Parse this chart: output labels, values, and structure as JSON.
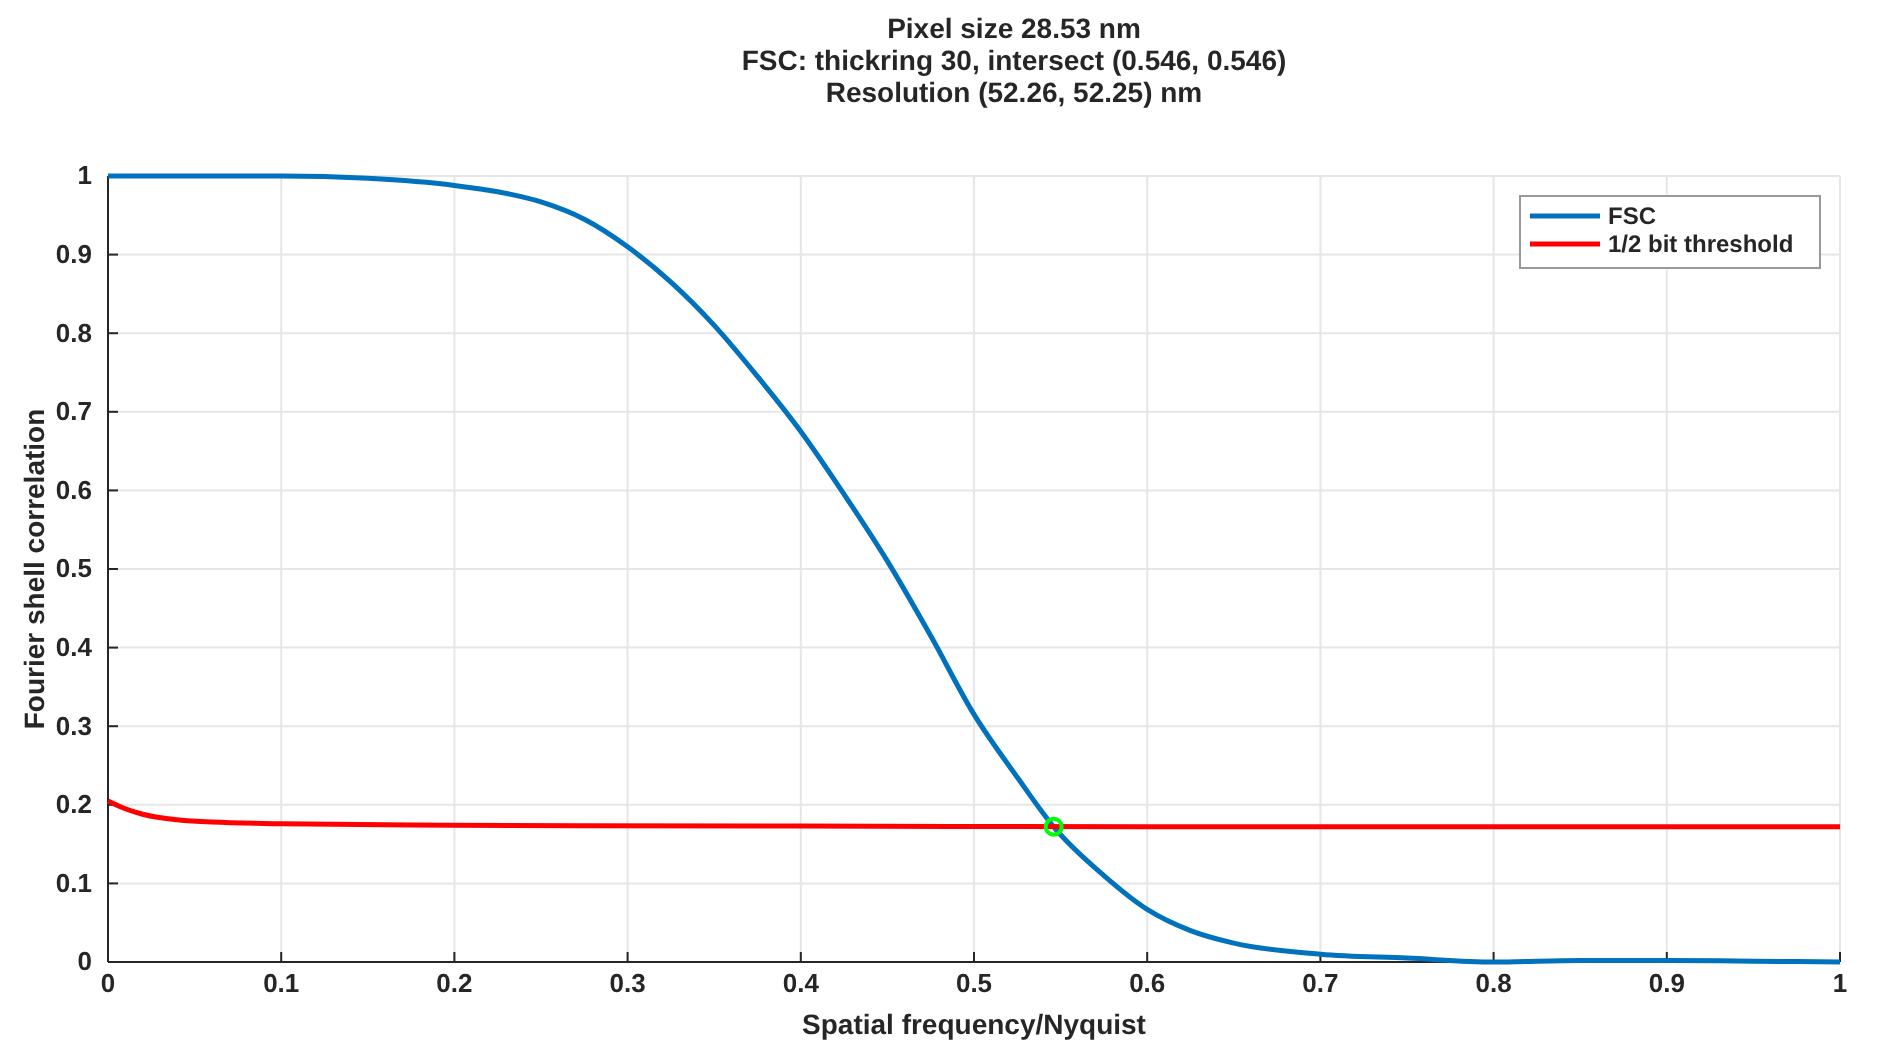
{
  "chart_data": {
    "type": "line",
    "title": "Pixel size 28.53 nm",
    "subtitle": "FSC: thickring 30, intersect (0.546, 0.546)\nResolution (52.26, 52.25) nm",
    "xlabel": "Spatial frequency/Nyquist",
    "ylabel": "Fourier shell correlation",
    "xlim": [
      0,
      1
    ],
    "ylim": [
      0,
      1
    ],
    "xticks": [
      0,
      0.1,
      0.2,
      0.3,
      0.4,
      0.5,
      0.6,
      0.7,
      0.8,
      0.9,
      1
    ],
    "yticks": [
      0,
      0.1,
      0.2,
      0.3,
      0.4,
      0.5,
      0.6,
      0.7,
      0.8,
      0.9,
      1
    ],
    "grid": true,
    "legend": "top right",
    "line_style": "solid",
    "series": [
      {
        "name": "FSC",
        "color": "#0072bd",
        "x": [
          0,
          0.05,
          0.1,
          0.15,
          0.2,
          0.225,
          0.25,
          0.275,
          0.3,
          0.325,
          0.35,
          0.375,
          0.4,
          0.425,
          0.45,
          0.475,
          0.5,
          0.525,
          0.546,
          0.575,
          0.6,
          0.625,
          0.65,
          0.7,
          0.75,
          0.8,
          0.85,
          0.9,
          0.95,
          1
        ],
        "values": [
          1,
          1,
          1,
          0.997,
          0.988,
          0.98,
          0.967,
          0.945,
          0.91,
          0.865,
          0.81,
          0.745,
          0.675,
          0.595,
          0.51,
          0.415,
          0.315,
          0.235,
          0.172,
          0.11,
          0.067,
          0.04,
          0.024,
          0.01,
          0.005,
          0,
          0.002,
          0.002,
          0.001,
          0
        ]
      },
      {
        "name": "1/2 bit threshold",
        "color": "#ff0000",
        "x": [
          0,
          0.01,
          0.02,
          0.04,
          0.06,
          0.1,
          0.2,
          0.4,
          0.6,
          1
        ],
        "values": [
          0.205,
          0.195,
          0.188,
          0.181,
          0.178,
          0.176,
          0.174,
          0.173,
          0.172,
          0.172
        ]
      },
      {
        "type": "scatter",
        "color": "#00ff00",
        "marker": "circle",
        "x": [
          0.546
        ],
        "values": [
          0.172
        ]
      }
    ]
  }
}
